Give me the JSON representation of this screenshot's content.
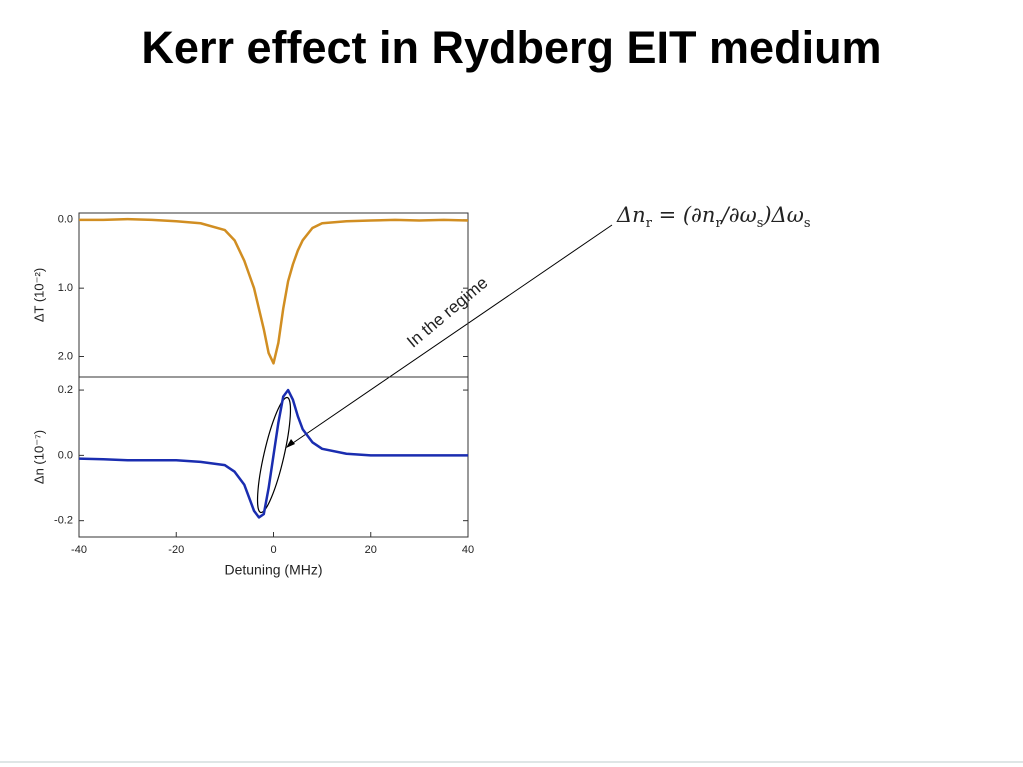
{
  "title": "Kerr effect in Rydberg EIT medium",
  "annotation": "In the regime",
  "formula": [
    "Δn",
    "r",
    " = (∂n",
    "r",
    "/∂ω",
    "s",
    ")Δω",
    "s"
  ],
  "chart_data": [
    {
      "type": "line",
      "ylabel": "ΔT (10⁻²)",
      "y_inverted": true,
      "x": [
        -40,
        -35,
        -30,
        -25,
        -20,
        -15,
        -10,
        -8,
        -6,
        -5,
        -4,
        -3,
        -2,
        -1,
        0,
        1,
        2,
        3,
        4,
        5,
        6,
        8,
        10,
        15,
        20,
        25,
        30,
        35,
        40
      ],
      "series": [
        {
          "color": "#d18e22",
          "values": [
            0.0,
            0.0,
            -0.01,
            0.0,
            0.02,
            0.05,
            0.15,
            0.3,
            0.6,
            0.8,
            1.0,
            1.3,
            1.6,
            1.95,
            2.1,
            1.8,
            1.3,
            0.9,
            0.65,
            0.45,
            0.3,
            0.12,
            0.05,
            0.02,
            0.01,
            0.0,
            0.01,
            0.0,
            0.01
          ]
        }
      ],
      "xlim": [
        -40,
        40
      ],
      "ylim": [
        -0.1,
        2.3
      ],
      "yticks": [
        {
          "value": 0,
          "label": "0.0"
        },
        {
          "value": 1,
          "label": "1.0"
        },
        {
          "value": 2,
          "label": "2.0"
        }
      ]
    },
    {
      "type": "line",
      "ylabel": "Δn (10⁻⁷)",
      "xlabel": "Detuning (MHz)",
      "x": [
        -40,
        -35,
        -30,
        -25,
        -20,
        -15,
        -10,
        -8,
        -6,
        -5,
        -4,
        -3,
        -2,
        -1,
        0,
        1,
        2,
        3,
        4,
        5,
        6,
        8,
        10,
        15,
        20,
        25,
        30,
        35,
        40
      ],
      "series": [
        {
          "color": "#1a2db0",
          "values": [
            -0.01,
            -0.012,
            -0.015,
            -0.015,
            -0.015,
            -0.02,
            -0.03,
            -0.05,
            -0.09,
            -0.13,
            -0.17,
            -0.19,
            -0.18,
            -0.1,
            0.0,
            0.1,
            0.18,
            0.2,
            0.17,
            0.12,
            0.08,
            0.04,
            0.02,
            0.005,
            0.0,
            0.0,
            0.0,
            0.0,
            0.0
          ]
        }
      ],
      "xlim": [
        -40,
        40
      ],
      "ylim": [
        -0.25,
        0.24
      ],
      "xticks": [
        -40,
        -20,
        0,
        20,
        40
      ],
      "yticks": [
        0.2,
        {
          "value": 0,
          "label": "0.0"
        },
        -0.2
      ]
    }
  ]
}
